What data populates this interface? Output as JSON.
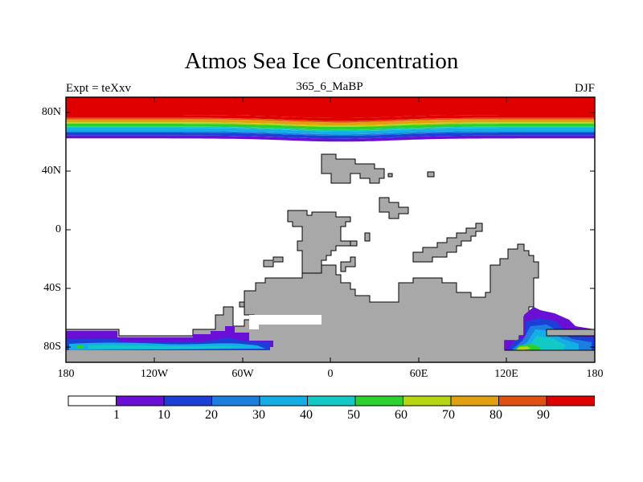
{
  "title": "Atmos Sea Ice Concentration",
  "subtitle_left": "Expt = teXxv",
  "subtitle_center": "365_6_MaBP",
  "subtitle_right": "DJF",
  "map": {
    "projection": "cylindrical equidistant",
    "lon_range": [
      -180,
      180
    ],
    "lat_range": [
      -90,
      90
    ],
    "land_color": "#a8a8a8",
    "ocean_color": "#ffffff",
    "y_ticks": [
      "80N",
      "40N",
      "0",
      "40S",
      "80S"
    ],
    "x_ticks": [
      "180",
      "120W",
      "60W",
      "0",
      "60E",
      "120E",
      "180"
    ]
  },
  "colorbar": {
    "labels": [
      "1",
      "10",
      "20",
      "30",
      "40",
      "50",
      "60",
      "70",
      "80",
      "90"
    ],
    "colors": [
      "#ffffff",
      "#6a0fd6",
      "#1d3fd8",
      "#1b7fe0",
      "#14aee6",
      "#12c9c6",
      "#2dd12d",
      "#b6d614",
      "#e0a010",
      "#e05010",
      "#e00000"
    ]
  },
  "chart_data": {
    "type": "heatmap",
    "variable": "Atmos Sea Ice Concentration",
    "units": "%",
    "season": "DJF",
    "experiment": "teXxv",
    "period": "365_6_MaBP",
    "levels": [
      1,
      10,
      20,
      30,
      40,
      50,
      60,
      70,
      80,
      90
    ],
    "arctic_bands": [
      {
        "lat": 90,
        "value": 95
      },
      {
        "lat": 78,
        "value": 95
      },
      {
        "lat": 76,
        "value": 85
      },
      {
        "lat": 75,
        "value": 75
      },
      {
        "lat": 73,
        "value": 65
      },
      {
        "lat": 72,
        "value": 55
      },
      {
        "lat": 70,
        "value": 45
      },
      {
        "lat": 69,
        "value": 35
      },
      {
        "lat": 67,
        "value": 25
      },
      {
        "lat": 66,
        "value": 15
      },
      {
        "lat": 64,
        "value": 5
      },
      {
        "lat": 62,
        "value": 0
      }
    ],
    "antarctic_regions": [
      {
        "name": "south pacific/atlantic sector",
        "lon": [
          -180,
          -40
        ],
        "lat": [
          -82,
          -68
        ],
        "max_value": 45
      },
      {
        "name": "australian sector",
        "lon": [
          120,
          180
        ],
        "lat": [
          -82,
          -55
        ],
        "max_value": 75
      }
    ],
    "x_axis": {
      "min": -180,
      "max": 180,
      "ticks": [
        -180,
        -120,
        -60,
        0,
        60,
        120,
        180
      ]
    },
    "y_axis": {
      "min": -90,
      "max": 90,
      "ticks": [
        80,
        40,
        0,
        -40,
        -80
      ]
    }
  }
}
